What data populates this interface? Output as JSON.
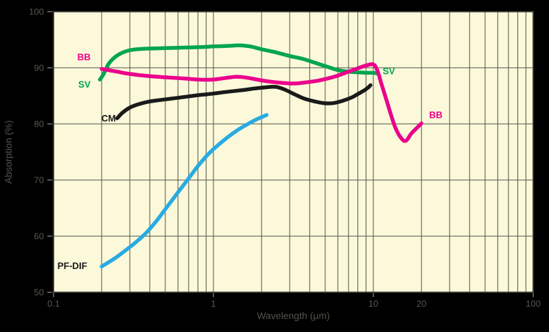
{
  "chart_data": {
    "type": "line",
    "title": "",
    "xlabel": "Wavelength (μm)",
    "ylabel": "Absorption (%)",
    "x_scale": "log",
    "y_scale": "linear",
    "xlim": [
      0.1,
      100
    ],
    "ylim": [
      50,
      100
    ],
    "grid": "log minor vertical lines; horizontal lines every 10%",
    "legend_position": "inline-curve-labels",
    "colors": {
      "outer_background": "#000000",
      "plot_background": "#FBF9DA",
      "grid_line": "#4E4E44",
      "plot_border": "#3E3E36",
      "tick_text": "#58584F",
      "axis_title_text": "#55554C",
      "bb_curve": "#EB008B",
      "sv_curve": "#00A550",
      "cm_curve": "#1A1A1A",
      "pfdif_curve": "#29ABE2"
    },
    "x_ticks": [
      {
        "value": 0.1,
        "label": "0.1",
        "tick": true
      },
      {
        "value": 1,
        "label": "1",
        "tick": true
      },
      {
        "value": 10,
        "label": "10",
        "tick": true
      },
      {
        "value": 20,
        "label": "20",
        "tick": false
      },
      {
        "value": 100,
        "label": "100",
        "tick": true
      }
    ],
    "y_ticks": [
      {
        "value": 50,
        "label": "50"
      },
      {
        "value": 60,
        "label": "60"
      },
      {
        "value": 70,
        "label": "70"
      },
      {
        "value": 80,
        "label": "80"
      },
      {
        "value": 90,
        "label": "90"
      },
      {
        "value": 100,
        "label": "100"
      }
    ],
    "series": [
      {
        "name": "PF-DIF",
        "color": "#29ABE2",
        "points": [
          [
            0.2,
            54.6
          ],
          [
            0.24,
            56.0
          ],
          [
            0.28,
            57.4
          ],
          [
            0.33,
            59.0
          ],
          [
            0.38,
            60.6
          ],
          [
            0.44,
            62.7
          ],
          [
            0.5,
            64.8
          ],
          [
            0.6,
            67.8
          ],
          [
            0.7,
            70.3
          ],
          [
            0.8,
            72.5
          ],
          [
            0.9,
            74.2
          ],
          [
            1.0,
            75.5
          ],
          [
            1.2,
            77.4
          ],
          [
            1.4,
            78.8
          ],
          [
            1.6,
            79.8
          ],
          [
            1.8,
            80.6
          ],
          [
            2.0,
            81.2
          ],
          [
            2.15,
            81.6
          ]
        ]
      },
      {
        "name": "CM",
        "color": "#1A1A1A",
        "points": [
          [
            0.25,
            81.0
          ],
          [
            0.27,
            82.0
          ],
          [
            0.3,
            82.9
          ],
          [
            0.34,
            83.5
          ],
          [
            0.4,
            84.0
          ],
          [
            0.48,
            84.3
          ],
          [
            0.58,
            84.6
          ],
          [
            0.7,
            84.9
          ],
          [
            0.85,
            85.2
          ],
          [
            1.0,
            85.4
          ],
          [
            1.2,
            85.7
          ],
          [
            1.5,
            86.0
          ],
          [
            1.8,
            86.3
          ],
          [
            2.1,
            86.5
          ],
          [
            2.45,
            86.6
          ],
          [
            2.8,
            86.1
          ],
          [
            3.2,
            85.3
          ],
          [
            3.7,
            84.5
          ],
          [
            4.3,
            84.0
          ],
          [
            4.9,
            83.7
          ],
          [
            5.6,
            83.7
          ],
          [
            6.4,
            84.1
          ],
          [
            7.3,
            84.7
          ],
          [
            8.1,
            85.4
          ],
          [
            8.8,
            86.0
          ],
          [
            9.3,
            86.5
          ],
          [
            9.6,
            86.9
          ]
        ]
      },
      {
        "name": "SV",
        "color": "#00A550",
        "points": [
          [
            0.195,
            87.9
          ],
          [
            0.205,
            88.8
          ],
          [
            0.22,
            90.6
          ],
          [
            0.24,
            91.8
          ],
          [
            0.27,
            92.7
          ],
          [
            0.31,
            93.2
          ],
          [
            0.38,
            93.4
          ],
          [
            0.5,
            93.5
          ],
          [
            0.65,
            93.6
          ],
          [
            0.85,
            93.7
          ],
          [
            1.0,
            93.8
          ],
          [
            1.25,
            93.9
          ],
          [
            1.45,
            94.0
          ],
          [
            1.7,
            93.8
          ],
          [
            2.0,
            93.3
          ],
          [
            2.5,
            92.7
          ],
          [
            3.0,
            92.1
          ],
          [
            3.6,
            91.6
          ],
          [
            4.2,
            91.0
          ],
          [
            5.0,
            90.3
          ],
          [
            6.0,
            89.6
          ],
          [
            7.0,
            89.3
          ],
          [
            8.0,
            89.2
          ],
          [
            9.0,
            89.1
          ],
          [
            10.0,
            89.1
          ],
          [
            10.6,
            89.0
          ]
        ]
      },
      {
        "name": "BB",
        "color": "#EB008B",
        "points": [
          [
            0.2,
            89.8
          ],
          [
            0.25,
            89.3
          ],
          [
            0.3,
            88.9
          ],
          [
            0.4,
            88.5
          ],
          [
            0.5,
            88.3
          ],
          [
            0.65,
            88.1
          ],
          [
            0.8,
            87.9
          ],
          [
            1.0,
            87.9
          ],
          [
            1.2,
            88.2
          ],
          [
            1.4,
            88.4
          ],
          [
            1.65,
            88.2
          ],
          [
            1.95,
            87.8
          ],
          [
            2.3,
            87.5
          ],
          [
            2.7,
            87.3
          ],
          [
            3.2,
            87.2
          ],
          [
            3.8,
            87.4
          ],
          [
            4.5,
            87.7
          ],
          [
            5.2,
            88.1
          ],
          [
            6.0,
            88.6
          ],
          [
            7.0,
            89.3
          ],
          [
            8.0,
            89.9
          ],
          [
            9.0,
            90.4
          ],
          [
            10.0,
            90.6
          ],
          [
            10.6,
            89.5
          ],
          [
            11.3,
            86.9
          ],
          [
            12.1,
            84.2
          ],
          [
            12.9,
            81.6
          ],
          [
            13.8,
            79.2
          ],
          [
            15.0,
            77.4
          ],
          [
            16.0,
            77.0
          ],
          [
            17.3,
            78.3
          ],
          [
            18.9,
            79.4
          ],
          [
            20.0,
            80.1
          ]
        ]
      }
    ],
    "annotations": [
      {
        "text": "BB",
        "x": 0.155,
        "y": 91.9,
        "color": "#EB008B"
      },
      {
        "text": "SV",
        "x": 0.156,
        "y": 87.0,
        "color": "#00A550"
      },
      {
        "text": "CM",
        "x": 0.221,
        "y": 81.0,
        "color": "#1A1A1A"
      },
      {
        "text": "PF-DIF",
        "x": 0.131,
        "y": 54.7,
        "color": "#1A1A1A"
      },
      {
        "text": "SV",
        "x": 12.5,
        "y": 89.4,
        "color": "#00A550"
      },
      {
        "text": "BB",
        "x": 24.6,
        "y": 81.6,
        "color": "#EB008B"
      }
    ]
  }
}
